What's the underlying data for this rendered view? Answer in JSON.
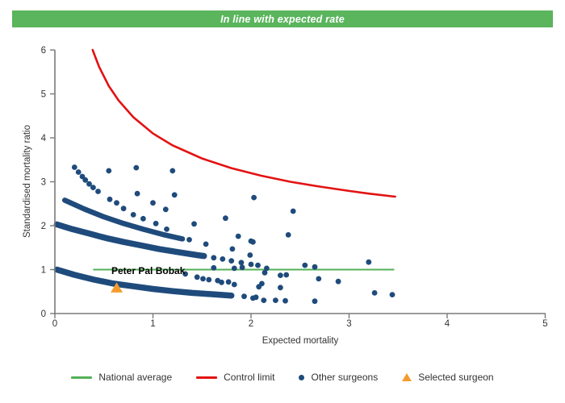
{
  "banner": {
    "text": "In line with expected rate"
  },
  "colors": {
    "banner": "#5ab55c",
    "green": "#53b157",
    "red": "#e31212",
    "navy": "#1f4b7c",
    "orange": "#f59b2d",
    "axis": "#7a7a7a",
    "tick_text": "#333333"
  },
  "chart_data": {
    "type": "scatter",
    "title": "In line with expected rate",
    "xlabel": "Expected mortality",
    "ylabel": "Standardised mortality ratio",
    "xlim": [
      0,
      5
    ],
    "ylim": [
      0,
      6
    ],
    "xticks": [
      0,
      1,
      2,
      3,
      4,
      5
    ],
    "yticks": [
      0,
      1,
      2,
      3,
      4,
      5,
      6
    ],
    "grid": false,
    "legend_position": "bottom",
    "national_average": {
      "y": 1,
      "x_start": 0.39,
      "x_end": 3.46
    },
    "control_limit": {
      "points": [
        [
          0.385,
          6.0
        ],
        [
          0.45,
          5.62
        ],
        [
          0.55,
          5.18
        ],
        [
          0.65,
          4.85
        ],
        [
          0.8,
          4.47
        ],
        [
          1.0,
          4.1
        ],
        [
          1.2,
          3.83
        ],
        [
          1.5,
          3.53
        ],
        [
          1.8,
          3.31
        ],
        [
          2.1,
          3.14
        ],
        [
          2.4,
          3.0
        ],
        [
          2.7,
          2.89
        ],
        [
          3.0,
          2.79
        ],
        [
          3.2,
          2.73
        ],
        [
          3.47,
          2.66
        ]
      ]
    },
    "surgeon_bands": [
      {
        "name": "band-smr-2",
        "width": 7.5,
        "points": [
          [
            0.02,
            2.03
          ],
          [
            0.18,
            1.92
          ],
          [
            0.35,
            1.82
          ],
          [
            0.52,
            1.72
          ],
          [
            0.7,
            1.63
          ],
          [
            0.88,
            1.55
          ],
          [
            1.06,
            1.47
          ],
          [
            1.25,
            1.4
          ],
          [
            1.45,
            1.33
          ],
          [
            1.52,
            1.31
          ]
        ]
      },
      {
        "name": "band-smr-1",
        "width": 7.5,
        "points": [
          [
            0.02,
            1.0
          ],
          [
            0.2,
            0.88
          ],
          [
            0.4,
            0.77
          ],
          [
            0.6,
            0.68
          ],
          [
            0.8,
            0.62
          ],
          [
            1.0,
            0.56
          ],
          [
            1.2,
            0.51
          ],
          [
            1.4,
            0.47
          ],
          [
            1.6,
            0.44
          ],
          [
            1.8,
            0.41
          ]
        ]
      },
      {
        "name": "band-smr-2-6",
        "width": 6.5,
        "points": [
          [
            0.1,
            2.58
          ],
          [
            0.3,
            2.38
          ],
          [
            0.5,
            2.2
          ],
          [
            0.7,
            2.05
          ],
          [
            0.9,
            1.92
          ],
          [
            1.1,
            1.8
          ],
          [
            1.3,
            1.7
          ]
        ]
      }
    ],
    "other_surgeons": [
      [
        0.2,
        3.33
      ],
      [
        0.24,
        3.22
      ],
      [
        0.28,
        3.12
      ],
      [
        0.31,
        3.04
      ],
      [
        0.35,
        2.95
      ],
      [
        0.39,
        2.87
      ],
      [
        0.44,
        2.78
      ],
      [
        0.56,
        2.6
      ],
      [
        0.63,
        2.52
      ],
      [
        0.7,
        2.39
      ],
      [
        0.8,
        2.25
      ],
      [
        0.9,
        2.16
      ],
      [
        1.03,
        2.05
      ],
      [
        1.14,
        1.92
      ],
      [
        0.55,
        3.25
      ],
      [
        0.83,
        3.32
      ],
      [
        1.2,
        3.25
      ],
      [
        0.84,
        2.73
      ],
      [
        1.0,
        2.52
      ],
      [
        1.13,
        2.37
      ],
      [
        1.22,
        2.7
      ],
      [
        1.37,
        1.68
      ],
      [
        1.42,
        2.04
      ],
      [
        1.54,
        1.58
      ],
      [
        1.74,
        2.17
      ],
      [
        1.81,
        1.47
      ],
      [
        1.87,
        1.76
      ],
      [
        2.0,
        1.65
      ],
      [
        2.03,
        2.64
      ],
      [
        2.38,
        1.79
      ],
      [
        2.43,
        2.33
      ],
      [
        1.33,
        0.9
      ],
      [
        1.45,
        0.83
      ],
      [
        1.57,
        0.77
      ],
      [
        1.7,
        0.71
      ],
      [
        1.83,
        0.66
      ],
      [
        1.62,
        1.27
      ],
      [
        1.71,
        1.24
      ],
      [
        1.8,
        1.2
      ],
      [
        1.9,
        1.16
      ],
      [
        2.0,
        1.12
      ],
      [
        2.07,
        1.1
      ],
      [
        1.93,
        0.39
      ],
      [
        2.05,
        0.37
      ],
      [
        1.51,
        0.79
      ],
      [
        1.62,
        1.04
      ],
      [
        1.66,
        0.75
      ],
      [
        1.77,
        0.72
      ],
      [
        1.83,
        1.03
      ],
      [
        1.91,
        1.05
      ],
      [
        1.99,
        1.33
      ],
      [
        2.02,
        1.63
      ],
      [
        2.02,
        0.35
      ],
      [
        2.08,
        0.61
      ],
      [
        2.11,
        0.68
      ],
      [
        2.13,
        0.3
      ],
      [
        2.14,
        0.93
      ],
      [
        2.16,
        1.03
      ],
      [
        2.25,
        0.3
      ],
      [
        2.3,
        0.59
      ],
      [
        2.3,
        0.87
      ],
      [
        2.36,
        0.88
      ],
      [
        2.35,
        0.29
      ],
      [
        2.55,
        1.1
      ],
      [
        2.65,
        1.06
      ],
      [
        2.65,
        0.28
      ],
      [
        2.69,
        0.79
      ],
      [
        2.89,
        0.73
      ],
      [
        3.2,
        1.17
      ],
      [
        3.26,
        0.47
      ],
      [
        3.44,
        0.43
      ]
    ],
    "selected_surgeon": {
      "x": 0.63,
      "y": 0.59,
      "label": "Peter Pal Bobak"
    }
  },
  "legend": {
    "items": [
      {
        "label": "National average",
        "marker": "green-line"
      },
      {
        "label": "Control limit",
        "marker": "red-line"
      },
      {
        "label": "Other surgeons",
        "marker": "navy-dot"
      },
      {
        "label": "Selected surgeon",
        "marker": "orange-triangle"
      }
    ]
  }
}
